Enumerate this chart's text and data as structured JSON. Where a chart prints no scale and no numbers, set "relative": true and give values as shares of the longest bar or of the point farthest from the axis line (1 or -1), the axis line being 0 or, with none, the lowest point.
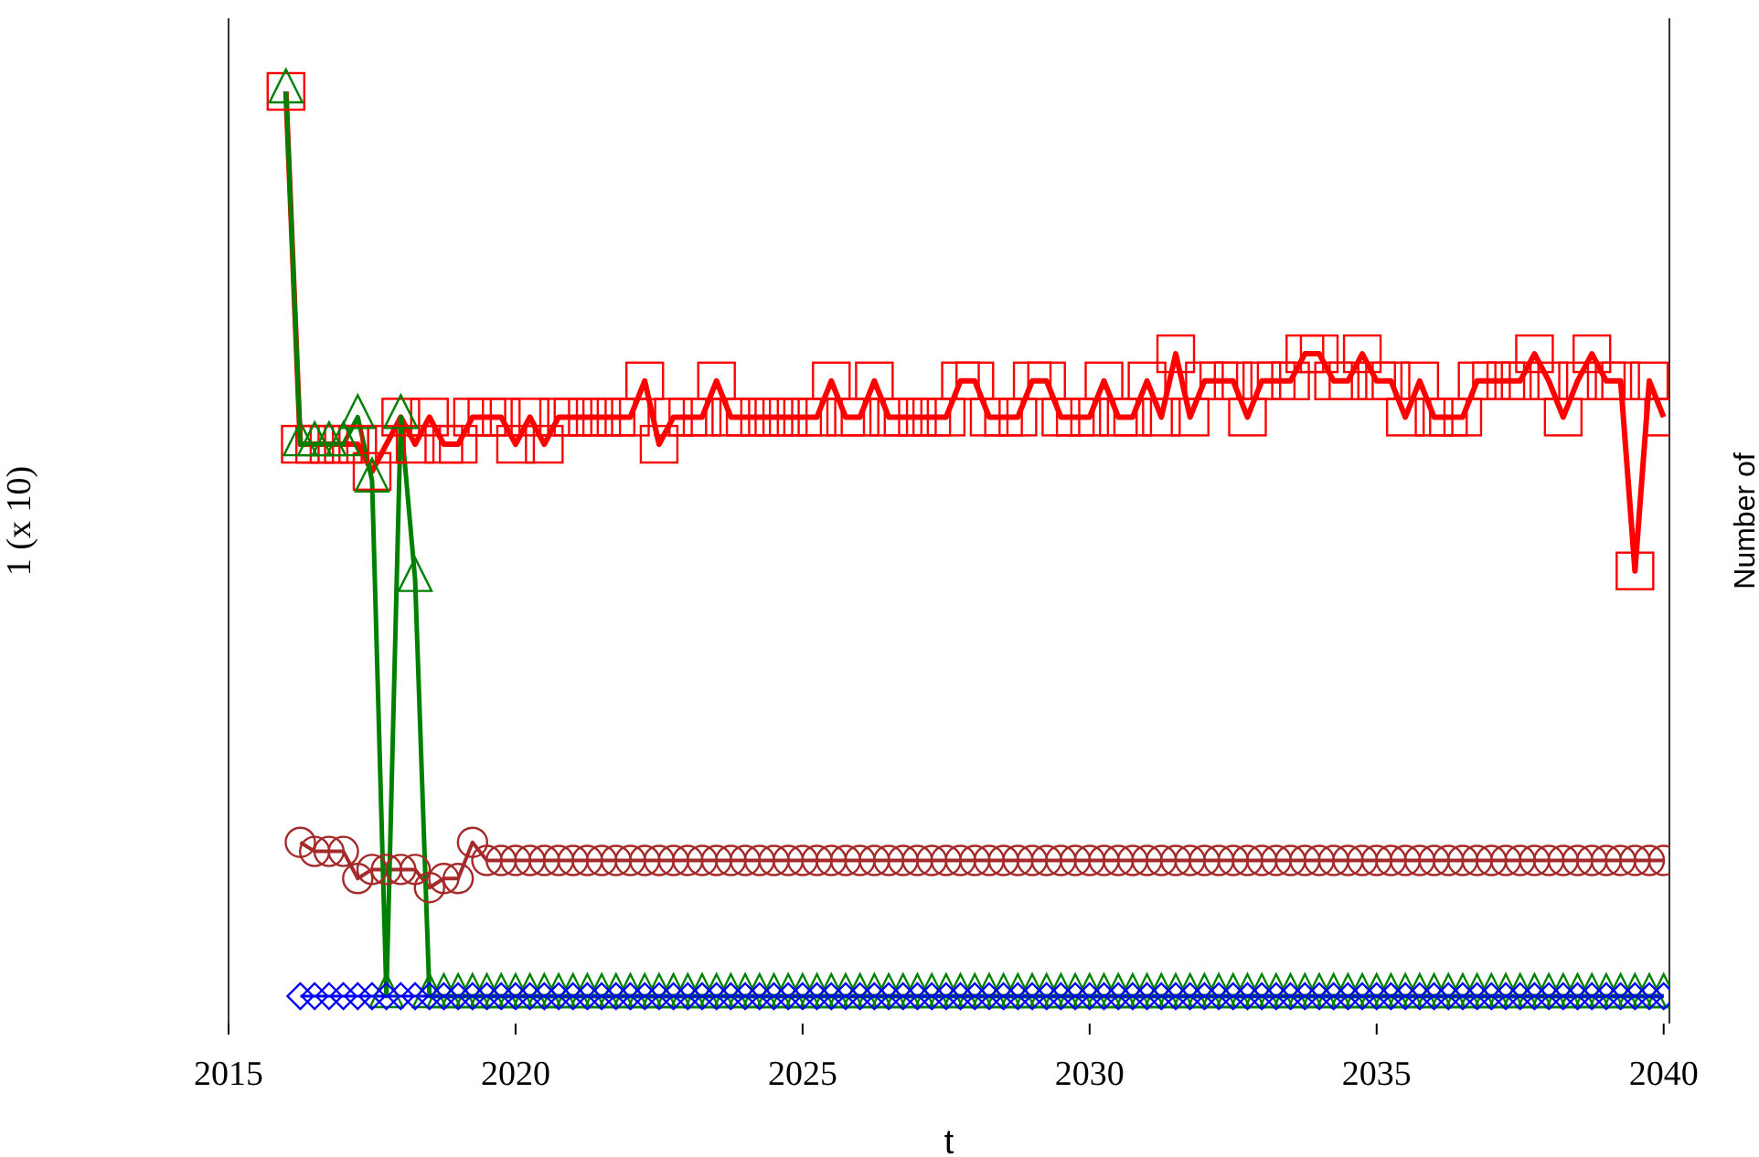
{
  "chart_data": {
    "type": "line",
    "relative": true,
    "xlabel": "t",
    "ylabel": "1 (x 10)",
    "y2label": "Number of",
    "xlim": [
      2015,
      2040.1
    ],
    "xticks": [
      2015,
      2020,
      2025,
      2030,
      2035,
      2040
    ],
    "x": [
      2016,
      2016.25,
      2016.5,
      2016.75,
      2017,
      2017.25,
      2017.5,
      2017.75,
      2018,
      2018.25,
      2018.5,
      2018.75,
      2019,
      2019.25,
      2019.5,
      2019.75,
      2020,
      2020.25,
      2020.5,
      2020.75,
      2021,
      2021.25,
      2021.5,
      2021.75,
      2022,
      2022.25,
      2022.5,
      2022.75,
      2023,
      2023.25,
      2023.5,
      2023.75,
      2024,
      2024.25,
      2024.5,
      2024.75,
      2025,
      2025.25,
      2025.5,
      2025.75,
      2026,
      2026.25,
      2026.5,
      2026.75,
      2027,
      2027.25,
      2027.5,
      2027.75,
      2028,
      2028.25,
      2028.5,
      2028.75,
      2029,
      2029.25,
      2029.5,
      2029.75,
      2030,
      2030.25,
      2030.5,
      2030.75,
      2031,
      2031.25,
      2031.5,
      2031.75,
      2032,
      2032.25,
      2032.5,
      2032.75,
      2033,
      2033.25,
      2033.5,
      2033.75,
      2034,
      2034.25,
      2034.5,
      2034.75,
      2035,
      2035.25,
      2035.5,
      2035.75,
      2036,
      2036.25,
      2036.5,
      2036.75,
      2037,
      2037.25,
      2037.5,
      2037.75,
      2038,
      2038.25,
      2038.5,
      2038.75,
      2039,
      2039.25,
      2039.5,
      2039.75,
      2040
    ],
    "series": [
      {
        "color": "#ff0000",
        "marker": "square",
        "values": [
          1,
          0.61,
          0.61,
          0.61,
          0.61,
          0.61,
          0.58,
          0.61,
          0.64,
          0.61,
          0.64,
          0.61,
          0.61,
          0.64,
          0.64,
          0.64,
          0.61,
          0.64,
          0.61,
          0.64,
          0.64,
          0.64,
          0.64,
          0.64,
          0.64,
          0.68,
          0.61,
          0.64,
          0.64,
          0.64,
          0.68,
          0.64,
          0.64,
          0.64,
          0.64,
          0.64,
          0.64,
          0.64,
          0.68,
          0.64,
          0.64,
          0.68,
          0.64,
          0.64,
          0.64,
          0.64,
          0.64,
          0.68,
          0.68,
          0.64,
          0.64,
          0.64,
          0.68,
          0.68,
          0.64,
          0.64,
          0.64,
          0.68,
          0.64,
          0.64,
          0.68,
          0.64,
          0.71,
          0.64,
          0.68,
          0.68,
          0.68,
          0.64,
          0.68,
          0.68,
          0.68,
          0.71,
          0.71,
          0.68,
          0.68,
          0.71,
          0.68,
          0.68,
          0.64,
          0.68,
          0.64,
          0.64,
          0.64,
          0.68,
          0.68,
          0.68,
          0.68,
          0.71,
          0.68,
          0.64,
          0.68,
          0.71,
          0.68,
          0.68,
          0.47,
          0.68,
          0.64
        ]
      },
      {
        "color": "#a52a2a",
        "marker": "circle",
        "values": [
          null,
          0.17,
          0.16,
          0.16,
          0.16,
          0.13,
          0.14,
          0.14,
          0.14,
          0.14,
          0.12,
          0.13,
          0.13,
          0.17,
          0.15,
          0.15,
          0.15,
          0.15,
          0.15,
          0.15,
          0.15,
          0.15,
          0.15,
          0.15,
          0.15,
          0.15,
          0.15,
          0.15,
          0.15,
          0.15,
          0.15,
          0.15,
          0.15,
          0.15,
          0.15,
          0.15,
          0.15,
          0.15,
          0.15,
          0.15,
          0.15,
          0.15,
          0.15,
          0.15,
          0.15,
          0.15,
          0.15,
          0.15,
          0.15,
          0.15,
          0.15,
          0.15,
          0.15,
          0.15,
          0.15,
          0.15,
          0.15,
          0.15,
          0.15,
          0.15,
          0.15,
          0.15,
          0.15,
          0.15,
          0.15,
          0.15,
          0.15,
          0.15,
          0.15,
          0.15,
          0.15,
          0.15,
          0.15,
          0.15,
          0.15,
          0.15,
          0.15,
          0.15,
          0.15,
          0.15,
          0.15,
          0.15,
          0.15,
          0.15,
          0.15,
          0.15,
          0.15,
          0.15,
          0.15,
          0.15,
          0.15,
          0.15,
          0.15,
          0.15,
          0.15,
          0.15,
          0.15
        ]
      },
      {
        "color": "#0000ff",
        "marker": "diamond",
        "values": [
          null,
          0,
          0,
          0,
          0,
          0,
          0,
          0,
          0,
          0,
          0,
          0,
          0,
          0,
          0,
          0,
          0,
          0,
          0,
          0,
          0,
          0,
          0,
          0,
          0,
          0,
          0,
          0,
          0,
          0,
          0,
          0,
          0,
          0,
          0,
          0,
          0,
          0,
          0,
          0,
          0,
          0,
          0,
          0,
          0,
          0,
          0,
          0,
          0,
          0,
          0,
          0,
          0,
          0,
          0,
          0,
          0,
          0,
          0,
          0,
          0,
          0,
          0,
          0,
          0,
          0,
          0,
          0,
          0,
          0,
          0,
          0,
          0,
          0,
          0,
          0,
          0,
          0,
          0,
          0,
          0,
          0,
          0,
          0,
          0,
          0,
          0,
          0,
          0,
          0,
          0,
          0,
          0,
          0,
          0,
          0,
          0
        ]
      },
      {
        "color": "#008000",
        "marker": "triangle",
        "values": [
          1,
          0.61,
          0.61,
          0.61,
          0.61,
          0.64,
          0.57,
          0,
          0.64,
          0.46,
          0,
          0,
          0,
          0,
          0,
          0,
          0,
          0,
          0,
          0,
          0,
          0,
          0,
          0,
          0,
          0,
          0,
          0,
          0,
          0,
          0,
          0,
          0,
          0,
          0,
          0,
          0,
          0,
          0,
          0,
          0,
          0,
          0,
          0,
          0,
          0,
          0,
          0,
          0,
          0,
          0,
          0,
          0,
          0,
          0,
          0,
          0,
          0,
          0,
          0,
          0,
          0,
          0,
          0,
          0,
          0,
          0,
          0,
          0,
          0,
          0,
          0,
          0,
          0,
          0,
          0,
          0,
          0,
          0,
          0,
          0,
          0,
          0,
          0,
          0,
          0,
          0,
          0,
          0,
          0,
          0,
          0,
          0,
          0,
          0,
          0,
          0
        ]
      }
    ]
  }
}
